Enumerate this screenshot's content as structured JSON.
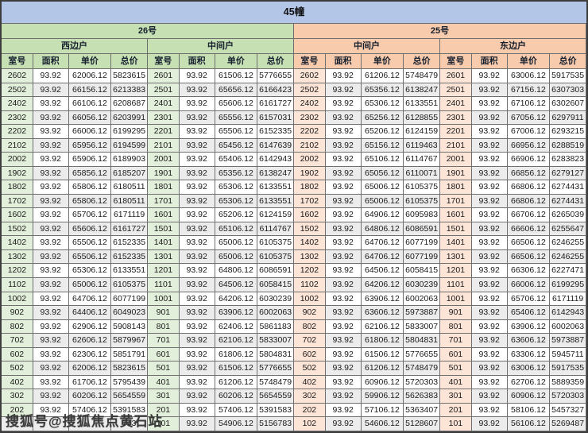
{
  "title": "45幢",
  "watermark": "搜狐号@搜狐焦点黄石站",
  "colors": {
    "title_bg": "#b4c6e7",
    "stripe": "#ececec",
    "white": "#ffffff",
    "border": "#6f6f6f"
  },
  "column_headers": [
    "室号",
    "面积",
    "单价",
    "总价"
  ],
  "buildings": [
    {
      "name": "26号",
      "header_bg": "#c6e0b4",
      "room_bg": "#e2efda",
      "sections": [
        {
          "side": "西边户",
          "rows": [
            [
              "2602",
              "93.92",
              "62006.12",
              "5823615"
            ],
            [
              "2502",
              "93.92",
              "66156.12",
              "6213383"
            ],
            [
              "2402",
              "93.92",
              "66106.12",
              "6208687"
            ],
            [
              "2302",
              "93.92",
              "66056.12",
              "6203991"
            ],
            [
              "2202",
              "93.92",
              "66006.12",
              "6199295"
            ],
            [
              "2102",
              "93.92",
              "65956.12",
              "6194599"
            ],
            [
              "2002",
              "93.92",
              "65906.12",
              "6189903"
            ],
            [
              "1902",
              "93.92",
              "65856.12",
              "6185207"
            ],
            [
              "1802",
              "93.92",
              "65806.12",
              "6180511"
            ],
            [
              "1702",
              "93.92",
              "65806.12",
              "6180511"
            ],
            [
              "1602",
              "93.92",
              "65706.12",
              "6171119"
            ],
            [
              "1502",
              "93.92",
              "65606.12",
              "6161727"
            ],
            [
              "1402",
              "93.92",
              "65506.12",
              "6152335"
            ],
            [
              "1302",
              "93.92",
              "65506.12",
              "6152335"
            ],
            [
              "1202",
              "93.92",
              "65306.12",
              "6133551"
            ],
            [
              "1102",
              "93.92",
              "65006.12",
              "6105375"
            ],
            [
              "1002",
              "93.92",
              "64706.12",
              "6077199"
            ],
            [
              "902",
              "93.92",
              "64406.12",
              "6049023"
            ],
            [
              "802",
              "93.92",
              "62906.12",
              "5908143"
            ],
            [
              "702",
              "93.92",
              "62606.12",
              "5879967"
            ],
            [
              "602",
              "93.92",
              "62306.12",
              "5851791"
            ],
            [
              "502",
              "93.92",
              "62006.12",
              "5823615"
            ],
            [
              "402",
              "93.92",
              "61706.12",
              "5795439"
            ],
            [
              "302",
              "93.92",
              "60206.12",
              "5654559"
            ],
            [
              "202",
              "93.92",
              "57406.12",
              "5391583"
            ],
            [
              "",
              "",
              "",
              "743"
            ]
          ]
        },
        {
          "side": "中间户",
          "rows": [
            [
              "2601",
              "93.92",
              "61506.12",
              "5776655"
            ],
            [
              "2501",
              "93.92",
              "65656.12",
              "6166423"
            ],
            [
              "2401",
              "93.92",
              "65606.12",
              "6161727"
            ],
            [
              "2301",
              "93.92",
              "65556.12",
              "6157031"
            ],
            [
              "2201",
              "93.92",
              "65506.12",
              "6152335"
            ],
            [
              "2101",
              "93.92",
              "65456.12",
              "6147639"
            ],
            [
              "2001",
              "93.92",
              "65406.12",
              "6142943"
            ],
            [
              "1901",
              "93.92",
              "65356.12",
              "6138247"
            ],
            [
              "1801",
              "93.92",
              "65306.12",
              "6133551"
            ],
            [
              "1701",
              "93.92",
              "65306.12",
              "6133551"
            ],
            [
              "1601",
              "93.92",
              "65206.12",
              "6124159"
            ],
            [
              "1501",
              "93.92",
              "65106.12",
              "6114767"
            ],
            [
              "1401",
              "93.92",
              "65006.12",
              "6105375"
            ],
            [
              "1301",
              "93.92",
              "65006.12",
              "6105375"
            ],
            [
              "1201",
              "93.92",
              "64806.12",
              "6086591"
            ],
            [
              "1101",
              "93.92",
              "64506.12",
              "6058415"
            ],
            [
              "1001",
              "93.92",
              "64206.12",
              "6030239"
            ],
            [
              "901",
              "93.92",
              "63906.12",
              "6002063"
            ],
            [
              "801",
              "93.92",
              "62406.12",
              "5861183"
            ],
            [
              "701",
              "93.92",
              "62106.12",
              "5833007"
            ],
            [
              "601",
              "93.92",
              "61806.12",
              "5804831"
            ],
            [
              "501",
              "93.92",
              "61506.12",
              "5776655"
            ],
            [
              "401",
              "93.92",
              "61206.12",
              "5748479"
            ],
            [
              "301",
              "93.92",
              "60206.12",
              "5654559"
            ],
            [
              "201",
              "93.92",
              "57406.12",
              "5391583"
            ],
            [
              "101",
              "93.92",
              "54906.12",
              "5156783"
            ]
          ]
        }
      ]
    },
    {
      "name": "25号",
      "header_bg": "#f8cbad",
      "room_bg": "#fce4d6",
      "sections": [
        {
          "side": "中间户",
          "rows": [
            [
              "2602",
              "93.92",
              "61206.12",
              "5748479"
            ],
            [
              "2502",
              "93.92",
              "65356.12",
              "6138247"
            ],
            [
              "2402",
              "93.92",
              "65306.12",
              "6133551"
            ],
            [
              "2302",
              "93.92",
              "65256.12",
              "6128855"
            ],
            [
              "2202",
              "93.92",
              "65206.12",
              "6124159"
            ],
            [
              "2102",
              "93.92",
              "65156.12",
              "6119463"
            ],
            [
              "2002",
              "93.92",
              "65106.12",
              "6114767"
            ],
            [
              "1902",
              "93.92",
              "65056.12",
              "6110071"
            ],
            [
              "1802",
              "93.92",
              "65006.12",
              "6105375"
            ],
            [
              "1702",
              "93.92",
              "65006.12",
              "6105375"
            ],
            [
              "1602",
              "93.92",
              "64906.12",
              "6095983"
            ],
            [
              "1502",
              "93.92",
              "64806.12",
              "6086591"
            ],
            [
              "1402",
              "93.92",
              "64706.12",
              "6077199"
            ],
            [
              "1302",
              "93.92",
              "64706.12",
              "6077199"
            ],
            [
              "1202",
              "93.92",
              "64506.12",
              "6058415"
            ],
            [
              "1102",
              "93.92",
              "64206.12",
              "6030239"
            ],
            [
              "1002",
              "93.92",
              "63906.12",
              "6002063"
            ],
            [
              "902",
              "93.92",
              "63606.12",
              "5973887"
            ],
            [
              "802",
              "93.92",
              "62106.12",
              "5833007"
            ],
            [
              "702",
              "93.92",
              "61806.12",
              "5804831"
            ],
            [
              "602",
              "93.92",
              "61506.12",
              "5776655"
            ],
            [
              "502",
              "93.92",
              "61206.12",
              "5748479"
            ],
            [
              "402",
              "93.92",
              "60906.12",
              "5720303"
            ],
            [
              "302",
              "93.92",
              "59906.12",
              "5626383"
            ],
            [
              "202",
              "93.92",
              "57106.12",
              "5363407"
            ],
            [
              "102",
              "93.92",
              "54606.12",
              "5128607"
            ]
          ]
        },
        {
          "side": "东边户",
          "rows": [
            [
              "2601",
              "93.92",
              "63006.12",
              "5917535"
            ],
            [
              "2501",
              "93.92",
              "67156.12",
              "6307303"
            ],
            [
              "2401",
              "93.92",
              "67106.12",
              "6302607"
            ],
            [
              "2301",
              "93.92",
              "67056.12",
              "6297911"
            ],
            [
              "2201",
              "93.92",
              "67006.12",
              "6293215"
            ],
            [
              "2101",
              "93.92",
              "66956.12",
              "6288519"
            ],
            [
              "2001",
              "93.92",
              "66906.12",
              "6283823"
            ],
            [
              "1901",
              "93.92",
              "66856.12",
              "6279127"
            ],
            [
              "1801",
              "93.92",
              "66806.12",
              "6274431"
            ],
            [
              "1701",
              "93.92",
              "66806.12",
              "6274431"
            ],
            [
              "1601",
              "93.92",
              "66706.12",
              "6265039"
            ],
            [
              "1501",
              "93.92",
              "66606.12",
              "6255647"
            ],
            [
              "1401",
              "93.92",
              "66506.12",
              "6246255"
            ],
            [
              "1301",
              "93.92",
              "66506.12",
              "6246255"
            ],
            [
              "1201",
              "93.92",
              "66306.12",
              "6227471"
            ],
            [
              "1101",
              "93.92",
              "66006.12",
              "6199295"
            ],
            [
              "1001",
              "93.92",
              "65706.12",
              "6171119"
            ],
            [
              "901",
              "93.92",
              "65406.12",
              "6142943"
            ],
            [
              "801",
              "93.92",
              "63906.12",
              "6002063"
            ],
            [
              "701",
              "93.92",
              "63606.12",
              "5973887"
            ],
            [
              "601",
              "93.92",
              "63306.12",
              "5945711"
            ],
            [
              "501",
              "93.92",
              "63006.12",
              "5917535"
            ],
            [
              "401",
              "93.92",
              "62706.12",
              "5889359"
            ],
            [
              "301",
              "93.92",
              "60906.12",
              "5720303"
            ],
            [
              "201",
              "93.92",
              "58106.12",
              "5457327"
            ],
            [
              "101",
              "93.92",
              "56106.12",
              "5269487"
            ]
          ]
        }
      ]
    }
  ]
}
